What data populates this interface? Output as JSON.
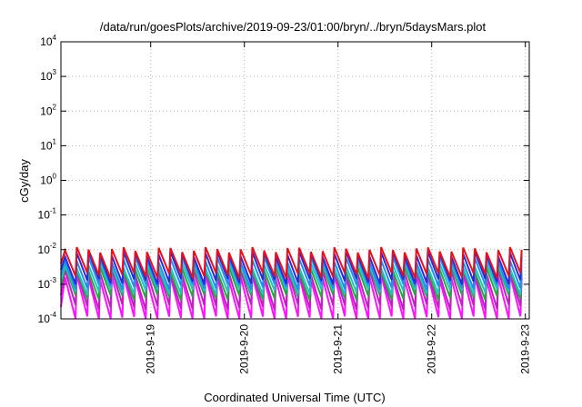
{
  "chart_data": {
    "type": "line",
    "title": "/data/run/goesPlots/archive/2019-09-23/01:00/bryn/../bryn/5daysMars.plot",
    "xlabel": "Coordinated Universal Time (UTC)",
    "ylabel": "cGy/day",
    "y_scale": "log",
    "ylim": [
      0.0001,
      10000
    ],
    "y_ticks": [
      {
        "value": 0.0001,
        "base": "10",
        "exp": "-4"
      },
      {
        "value": 0.001,
        "base": "10",
        "exp": "-3"
      },
      {
        "value": 0.01,
        "base": "10",
        "exp": "-2"
      },
      {
        "value": 0.1,
        "base": "10",
        "exp": "-1"
      },
      {
        "value": 1,
        "base": "10",
        "exp": "0"
      },
      {
        "value": 10,
        "base": "10",
        "exp": "1"
      },
      {
        "value": 100,
        "base": "10",
        "exp": "2"
      },
      {
        "value": 1000,
        "base": "10",
        "exp": "3"
      },
      {
        "value": 10000,
        "base": "10",
        "exp": "4"
      }
    ],
    "xlim": [
      "2019-09-18 01:00",
      "2019-09-23 01:00"
    ],
    "x_ticks": [
      {
        "value": "2019-09-19 00:00",
        "label": "2019-9-19"
      },
      {
        "value": "2019-09-20 00:00",
        "label": "2019-9-20"
      },
      {
        "value": "2019-09-21 00:00",
        "label": "2019-9-21"
      },
      {
        "value": "2019-09-22 00:00",
        "label": "2019-9-22"
      },
      {
        "value": "2019-09-23 00:00",
        "label": "2019-9-23"
      }
    ],
    "grid": true,
    "legend": "none",
    "sawtooth_period_hours": 3,
    "series": [
      {
        "color": "#e8101c",
        "peak": 0.01,
        "trough": 0.0018
      },
      {
        "color": "#2a2ad8",
        "peak": 0.0075,
        "trough": 0.0012
      },
      {
        "color": "#1e8ff0",
        "peak": 0.0052,
        "trough": 0.00085
      },
      {
        "color": "#23c3c3",
        "peak": 0.0035,
        "trough": 0.0006
      },
      {
        "color": "#26a83a",
        "peak": 0.0028,
        "trough": 0.00042
      },
      {
        "color": "#c020c0",
        "peak": 0.0022,
        "trough": 0.00022
      },
      {
        "color": "#ff10ff",
        "peak": 0.0016,
        "trough": 0.0001
      }
    ]
  }
}
